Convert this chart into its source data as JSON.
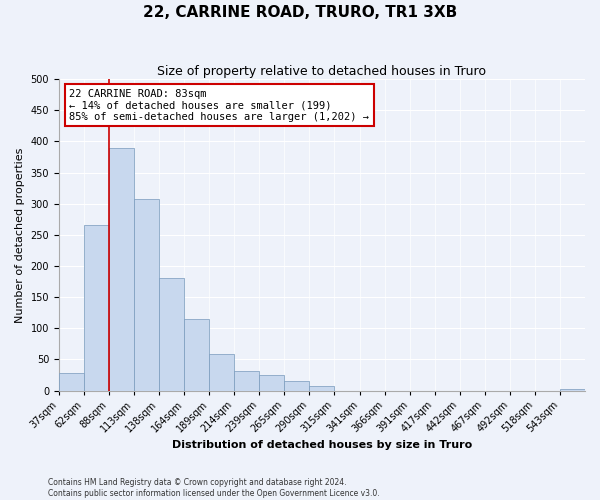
{
  "title": "22, CARRINE ROAD, TRURO, TR1 3XB",
  "subtitle": "Size of property relative to detached houses in Truro",
  "xlabel": "Distribution of detached houses by size in Truro",
  "ylabel": "Number of detached properties",
  "bin_labels": [
    "37sqm",
    "62sqm",
    "88sqm",
    "113sqm",
    "138sqm",
    "164sqm",
    "189sqm",
    "214sqm",
    "239sqm",
    "265sqm",
    "290sqm",
    "315sqm",
    "341sqm",
    "366sqm",
    "391sqm",
    "417sqm",
    "442sqm",
    "467sqm",
    "492sqm",
    "518sqm",
    "543sqm"
  ],
  "bar_values": [
    28,
    265,
    390,
    308,
    180,
    115,
    58,
    32,
    25,
    15,
    7,
    0,
    0,
    0,
    0,
    0,
    0,
    0,
    0,
    0,
    2
  ],
  "bar_color": "#c8d8ee",
  "bar_edge_color": "#7799bb",
  "property_line_color": "#cc0000",
  "annotation_title": "22 CARRINE ROAD: 83sqm",
  "annotation_line1": "← 14% of detached houses are smaller (199)",
  "annotation_line2": "85% of semi-detached houses are larger (1,202) →",
  "annotation_box_color": "#cc0000",
  "ylim": [
    0,
    500
  ],
  "yticks": [
    0,
    50,
    100,
    150,
    200,
    250,
    300,
    350,
    400,
    450,
    500
  ],
  "footer_line1": "Contains HM Land Registry data © Crown copyright and database right 2024.",
  "footer_line2": "Contains public sector information licensed under the Open Government Licence v3.0.",
  "background_color": "#eef2fa",
  "grid_color": "#ffffff",
  "title_fontsize": 11,
  "subtitle_fontsize": 9,
  "axis_label_fontsize": 8,
  "tick_fontsize": 7,
  "annotation_fontsize": 7.5,
  "footer_fontsize": 5.5
}
